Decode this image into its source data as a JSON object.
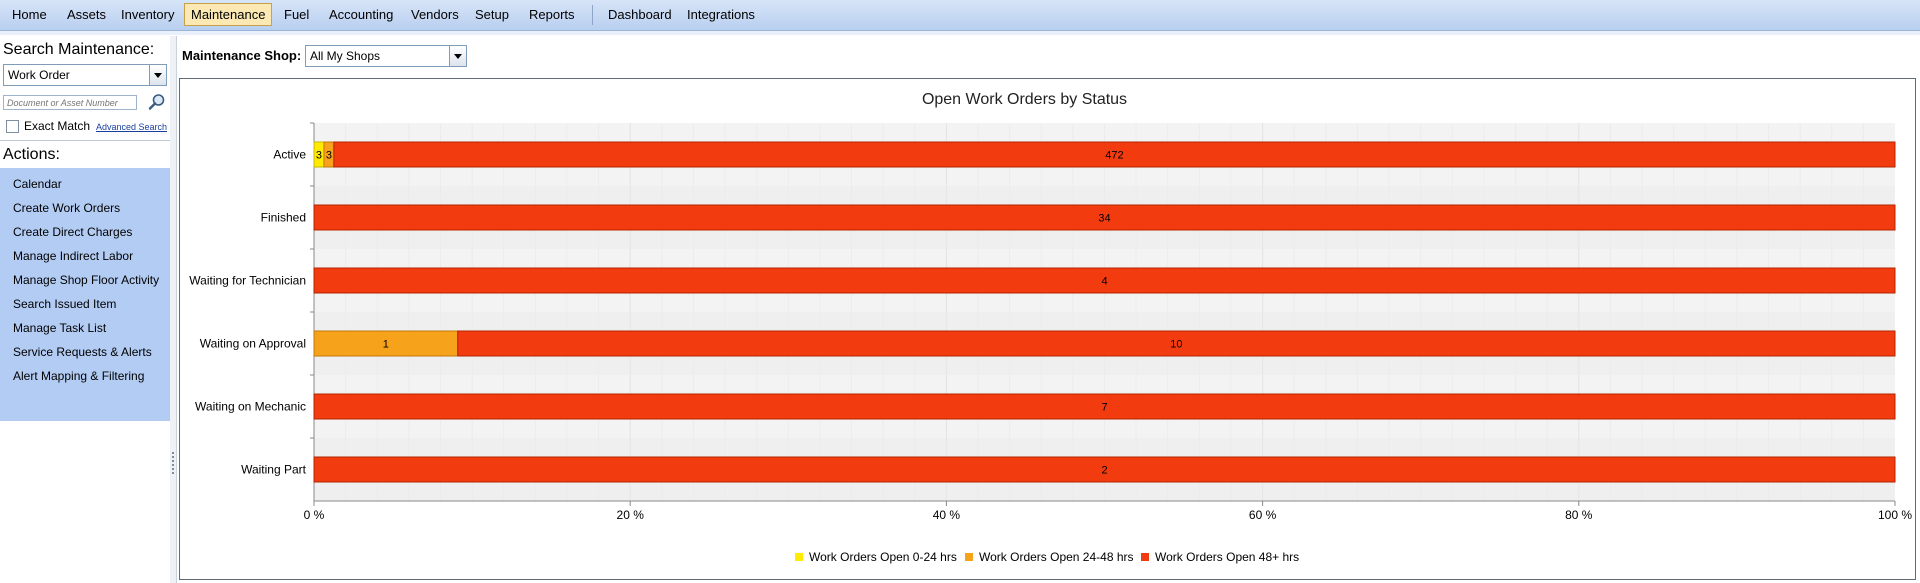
{
  "menu": {
    "items": [
      "Home",
      "Assets",
      "Inventory",
      "Maintenance",
      "Fuel",
      "Accounting",
      "Vendors",
      "Setup",
      "Reports",
      "Dashboard",
      "Integrations"
    ],
    "active": "Maintenance"
  },
  "sidebar": {
    "search_title": "Search Maintenance:",
    "search_type": "Work Order",
    "doc_placeholder": "Document or Asset Number",
    "exact_match_label": "Exact Match",
    "advanced_search_label": "Advanced Search",
    "actions_title": "Actions:",
    "actions": [
      "Calendar",
      "Create Work Orders",
      "Create Direct Charges",
      "Manage Indirect Labor",
      "Manage Shop Floor Activity",
      "Search Issued Item",
      "Manage Task List",
      "Service Requests & Alerts",
      "Alert Mapping & Filtering"
    ]
  },
  "main": {
    "shop_label": "Maintenance Shop:",
    "shop_value": "All My Shops"
  },
  "colors": {
    "series_0_24": "#ffea00",
    "series_24_48": "#f7a21b",
    "series_48_plus": "#f23b0f",
    "accent_menu": "#b9cff0",
    "actions_bg": "#b3ccf3"
  },
  "chart_data": {
    "type": "bar",
    "orientation": "horizontal",
    "stacked": "percent",
    "title": "Open Work Orders by Status",
    "categories": [
      "Active",
      "Finished",
      "Waiting for Technician",
      "Waiting on Approval",
      "Waiting on Mechanic",
      "Waiting Part"
    ],
    "series": [
      {
        "name": "Work Orders Open 0-24 hrs",
        "values": [
          3,
          0,
          0,
          0,
          0,
          0
        ]
      },
      {
        "name": "Work Orders Open 24-48 hrs",
        "values": [
          3,
          0,
          0,
          1,
          0,
          0
        ]
      },
      {
        "name": "Work Orders Open 48+ hrs",
        "values": [
          472,
          34,
          4,
          10,
          7,
          2
        ]
      }
    ],
    "xlim": [
      0,
      100
    ],
    "xticks": [
      "0 %",
      "20 %",
      "40 %",
      "60 %",
      "80 %",
      "100 %"
    ],
    "legend": "bottom",
    "grid": true
  }
}
